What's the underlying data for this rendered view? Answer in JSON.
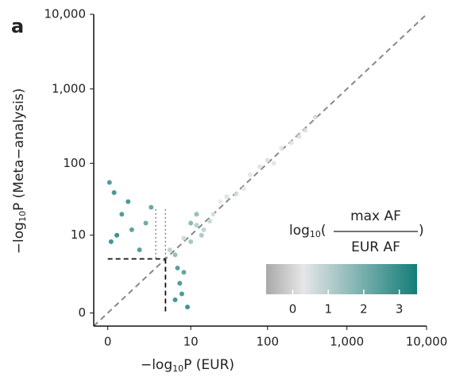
{
  "chart_data": {
    "type": "scatter",
    "panel_label": "a",
    "x_label": {
      "prefix": "−log",
      "sub": "10",
      "suffix": "P (EUR)"
    },
    "y_label": {
      "prefix": "−log",
      "sub": "10",
      "suffix": "P (Meta−analysis)"
    },
    "scale": "pseudo-log",
    "xlim": [
      -0.5,
      10000
    ],
    "ylim": [
      -0.5,
      10000
    ],
    "xticks": [
      0,
      10,
      100,
      {
        "value": 1000,
        "label": "1,000"
      },
      {
        "value": 10000,
        "label": "10,000"
      }
    ],
    "yticks": [
      0,
      10,
      100,
      {
        "value": 1000,
        "label": "1,000"
      },
      {
        "value": 10000,
        "label": "10,000"
      }
    ],
    "threshold": 4.3,
    "dotted_x": [
      3.0,
      4.3
    ],
    "x": [
      20,
      50,
      100,
      200,
      30,
      8,
      15,
      60,
      150,
      300,
      10,
      25,
      40,
      80,
      120,
      250,
      400,
      12,
      18,
      6,
      0.2,
      0.5,
      1,
      0.1,
      2,
      0.8,
      1.5,
      0.3,
      0.05,
      2.5,
      6,
      7,
      8,
      9,
      6.5,
      7.5,
      10,
      12,
      5,
      14
    ],
    "y": [
      20,
      45,
      110,
      190,
      35,
      9,
      12,
      70,
      160,
      280,
      8,
      30,
      38,
      90,
      100,
      230,
      420,
      14,
      16,
      5,
      40,
      20,
      12,
      8,
      15,
      30,
      6,
      10,
      55,
      25,
      0.5,
      1.5,
      2.5,
      0.2,
      3,
      0.8,
      15,
      20,
      6,
      10
    ],
    "color_values": [
      0.2,
      0.3,
      0.1,
      0.2,
      0.5,
      0.8,
      1,
      0.4,
      0.2,
      0.1,
      1.5,
      0.3,
      0.6,
      0.2,
      0.4,
      0.1,
      0,
      1.2,
      0.9,
      1.8,
      3.2,
      3,
      2.8,
      3.3,
      2.5,
      3.1,
      2.9,
      3.4,
      3.0,
      2.6,
      3.2,
      3,
      2.7,
      3.3,
      2.9,
      3.1,
      2,
      1.8,
      1,
      1.4
    ],
    "colorbar": {
      "prefix": "log",
      "sub": "10",
      "numerator": "max AF",
      "denominator": "EUR AF",
      "clim": [
        -0.75,
        3.5
      ],
      "ticks": [
        0,
        1,
        2,
        3
      ],
      "stops": [
        [
          -0.75,
          "#a9a9a9"
        ],
        [
          0.3,
          "#e6e6e6"
        ],
        [
          3.5,
          "#137d78"
        ]
      ]
    }
  }
}
